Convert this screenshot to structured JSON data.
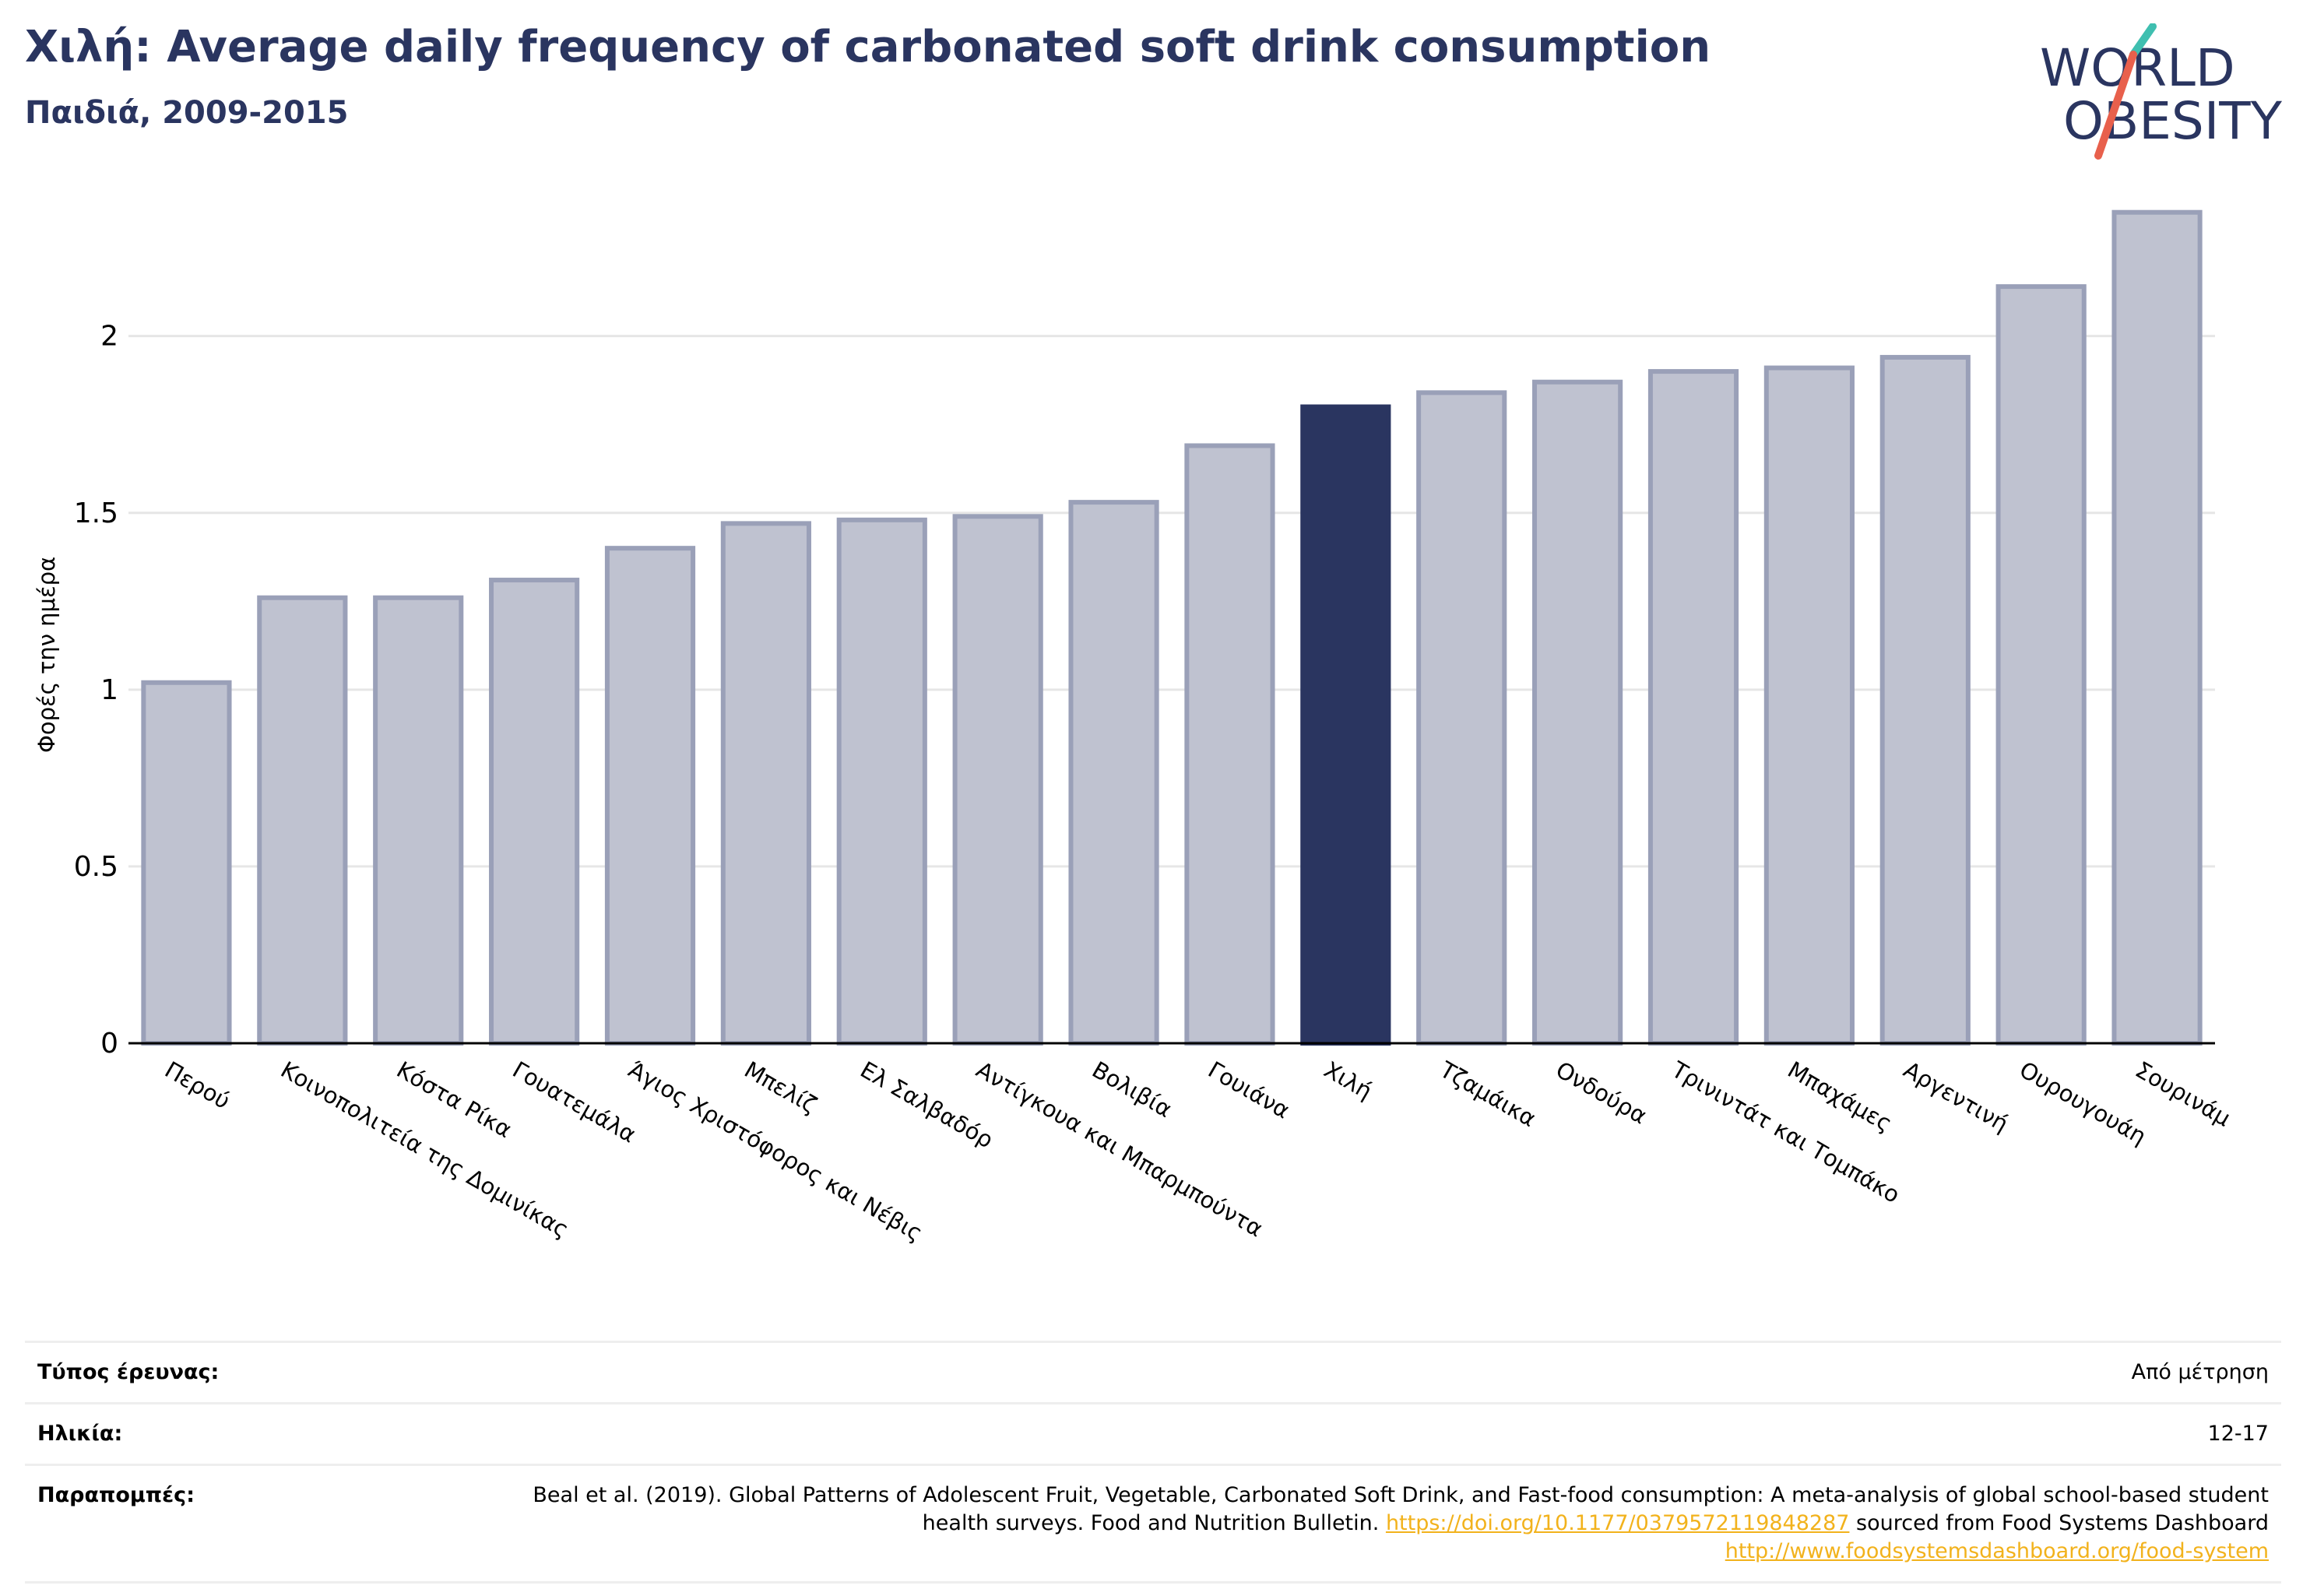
{
  "header": {
    "title": "Χιλή: Average daily frequency of carbonated soft drink consumption",
    "subtitle": "Παιδιά, 2009-2015"
  },
  "logo": {
    "line1": "WORLD",
    "line2": "OBESITY",
    "colors": {
      "text": "#2a3560",
      "slash_teal": "#3fbfb0",
      "slash_red": "#e8604c"
    }
  },
  "colors": {
    "bar": "#bfc2d0",
    "bar_outline": "#9aa0b8",
    "highlight": "#2a3560",
    "grid": "#e6e6e6",
    "axis": "#000000"
  },
  "chart_data": {
    "type": "bar",
    "title": "Χιλή: Average daily frequency of carbonated soft drink consumption",
    "subtitle": "Παιδιά, 2009-2015",
    "ylabel": "Φορές την ημέρα",
    "xlabel": "",
    "ylim": [
      0,
      2.4
    ],
    "yticks": [
      0,
      0.5,
      1,
      1.5,
      2
    ],
    "ytick_labels": [
      "0",
      "0.5",
      "1",
      "1.5",
      "2"
    ],
    "grid": true,
    "highlight": "Χιλή",
    "categories": [
      "Περού",
      "Κοινοπολιτεία της Δομινίκας",
      "Κόστα Ρίκα",
      "Γουατεμάλα",
      "Άγιος Χριστόφορος και Νέβις",
      "Μπελίζ",
      "Ελ Σαλβαδόρ",
      "Αντίγκουα και Μπαρμπούντα",
      "Βολιβία",
      "Γουιάνα",
      "Χιλή",
      "Τζαμάικα",
      "Ονδούρα",
      "Τρινιντάτ και Τομπάκο",
      "Μπαχάμες",
      "Αργεντινή",
      "Ουρουγουάη",
      "Σουρινάμ"
    ],
    "values": [
      1.02,
      1.26,
      1.26,
      1.31,
      1.4,
      1.47,
      1.48,
      1.49,
      1.53,
      1.69,
      1.8,
      1.84,
      1.87,
      1.9,
      1.91,
      1.94,
      2.14,
      2.35
    ]
  },
  "info": {
    "survey_type_label": "Τύπος έρευνας:",
    "survey_type_value": "Από μέτρηση",
    "age_label": "Ηλικία:",
    "age_value": "12-17",
    "refs_label": "Παραπομπές:",
    "refs_text1": "Beal et al. (2019). Global Patterns of Adolescent Fruit, Vegetable, Carbonated Soft Drink, and Fast-food consumption: A meta-analysis of global school-based student health surveys. Food and Nutrition Bulletin.",
    "refs_link1": "https://doi.org/10.1177/0379572119848287",
    "refs_text2": "sourced from Food Systems Dashboard",
    "refs_link2": "http://www.foodsystemsdashboard.org/food-system"
  }
}
